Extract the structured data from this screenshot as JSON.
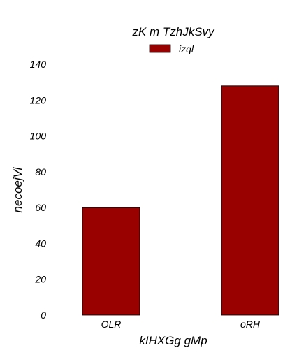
{
  "chart_data": {
    "type": "bar",
    "title": "zK m  TzhJkSvy",
    "xlabel": "kIHXGg gMp",
    "ylabel": "necoejVi",
    "categories": [
      "OLR",
      "oRH"
    ],
    "series": [
      {
        "name": "izql",
        "values": [
          60,
          128
        ],
        "color": "#990000"
      }
    ],
    "ylim": [
      0,
      140
    ],
    "yticks": [
      0,
      20,
      40,
      60,
      80,
      100,
      120,
      140
    ],
    "grid": false,
    "legend": "top-center"
  }
}
